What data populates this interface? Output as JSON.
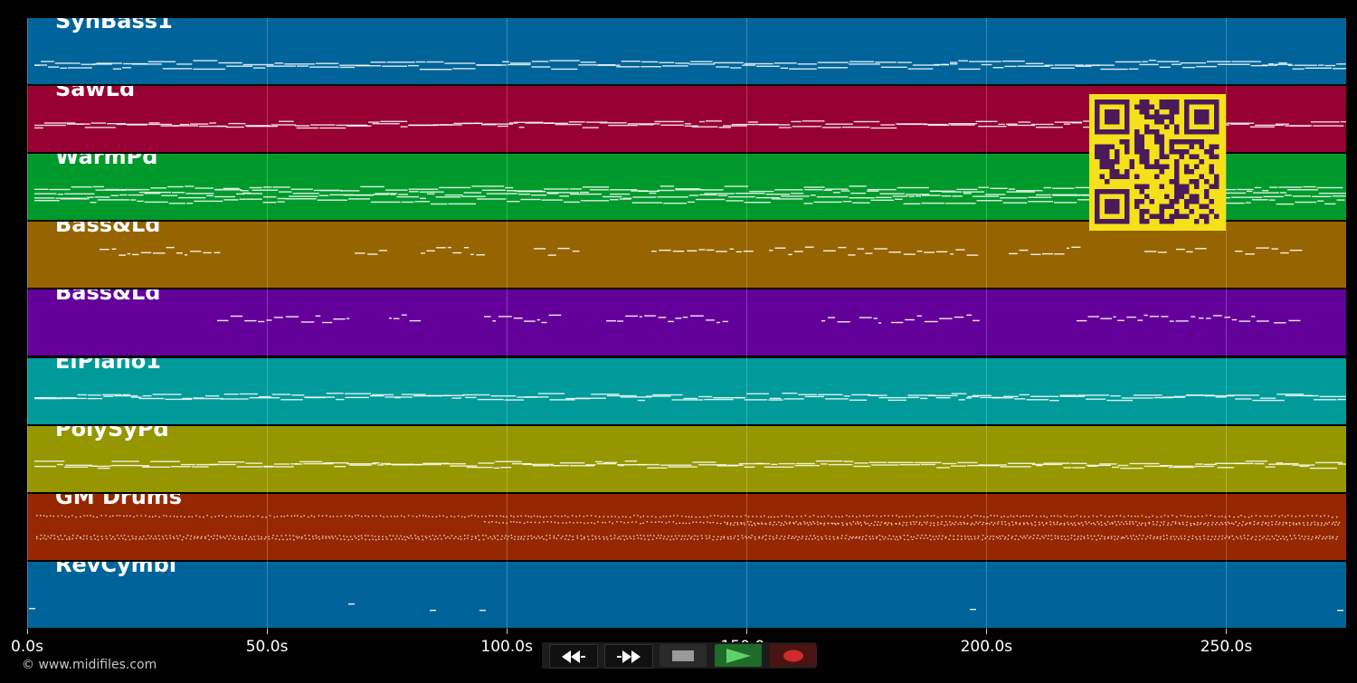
{
  "tracks": [
    {
      "name": "SynBass1",
      "color": "#00649a",
      "density": "continuous"
    },
    {
      "name": "SawLd",
      "color": "#960033",
      "density": "continuous"
    },
    {
      "name": "WarmPd",
      "color": "#009a2c",
      "density": "continuous"
    },
    {
      "name": "Bass&Ld",
      "color": "#966400",
      "density": "sparse"
    },
    {
      "name": "Bass&Ld",
      "color": "#64009a",
      "density": "sparse"
    },
    {
      "name": "ElPiano1",
      "color": "#009a9a",
      "density": "continuous"
    },
    {
      "name": "PolySyPd",
      "color": "#969600",
      "density": "continuous"
    },
    {
      "name": "GM Drums",
      "color": "#962800",
      "density": "drums"
    },
    {
      "name": "RevCymbl",
      "color": "#00649a",
      "density": "rare"
    }
  ],
  "timeline": {
    "max_seconds": 275,
    "labels": [
      "0.0s",
      "50.0s",
      "100.0s",
      "150.0s",
      "200.0s",
      "250.0s"
    ]
  },
  "transport": {
    "buttons": [
      {
        "name": "rewind-button",
        "icon": "rewind-icon"
      },
      {
        "name": "fast-forward-button",
        "icon": "fast-forward-icon"
      },
      {
        "name": "stop-button",
        "icon": "stop-icon"
      },
      {
        "name": "play-button",
        "icon": "play-icon"
      },
      {
        "name": "record-button",
        "icon": "record-icon"
      }
    ]
  },
  "copyright": "© www.midifiles.com"
}
